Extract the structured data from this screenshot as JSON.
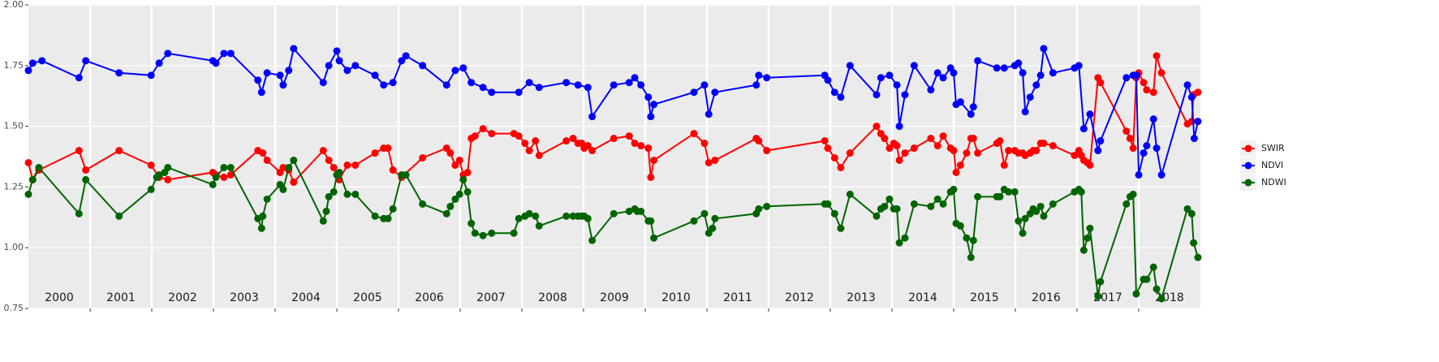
{
  "chart_data": {
    "type": "line",
    "ylim": [
      0.75,
      2.0
    ],
    "yticks": [
      {
        "value": 0.75,
        "label": "0.75"
      },
      {
        "value": 1.0,
        "label": "1.00"
      },
      {
        "value": 1.25,
        "label": "1.25"
      },
      {
        "value": 1.5,
        "label": "1.50"
      },
      {
        "value": 1.75,
        "label": "1.75"
      },
      {
        "value": 2.0,
        "label": "2.00"
      }
    ],
    "xlim": [
      2000,
      2019
    ],
    "xbreaks": [
      2001,
      2002,
      2003,
      2004,
      2005,
      2006,
      2007,
      2008,
      2009,
      2010,
      2011,
      2012,
      2013,
      2014,
      2015,
      2016,
      2017,
      2018
    ],
    "year_labels": [
      "2000",
      "2001",
      "2002",
      "2003",
      "2004",
      "2005",
      "2006",
      "2007",
      "2008",
      "2009",
      "2010",
      "2011",
      "2012",
      "2013",
      "2014",
      "2015",
      "2016",
      "2017",
      "2018"
    ],
    "grid": true,
    "legend": "right",
    "series": [
      {
        "name": "SWIR",
        "color": "#ff0000",
        "x": [
          2000.0,
          2000.07,
          2000.17,
          2000.82,
          2000.93,
          2001.47,
          2001.99,
          2002.12,
          2002.26,
          2002.99,
          2003.04,
          2003.17,
          2003.28,
          2003.72,
          2003.8,
          2003.87,
          2004.08,
          2004.13,
          2004.22,
          2004.3,
          2004.78,
          2004.87,
          2004.95,
          2005.0,
          2005.04,
          2005.17,
          2005.3,
          2005.62,
          2005.76,
          2005.83,
          2005.91,
          2006.05,
          2006.39,
          2006.78,
          2006.84,
          2006.92,
          2006.99,
          2007.05,
          2007.12,
          2007.18,
          2007.24,
          2007.37,
          2007.51,
          2007.87,
          2007.95,
          2008.05,
          2008.12,
          2008.22,
          2008.28,
          2008.72,
          2008.83,
          2008.91,
          2008.97,
          2009.01,
          2009.07,
          2009.14,
          2009.49,
          2009.74,
          2009.83,
          2009.93,
          2010.05,
          2010.09,
          2010.14,
          2010.79,
          2010.96,
          2011.03,
          2011.13,
          2011.8,
          2011.84,
          2011.97,
          2012.91,
          2012.96,
          2013.07,
          2013.17,
          2013.32,
          2013.75,
          2013.82,
          2013.88,
          2013.96,
          2014.03,
          2014.08,
          2014.12,
          2014.21,
          2014.36,
          2014.63,
          2014.74,
          2014.83,
          2014.95,
          2015.0,
          2015.04,
          2015.11,
          2015.21,
          2015.28,
          2015.32,
          2015.39,
          2015.7,
          2015.75,
          2015.82,
          2015.89,
          2015.99,
          2016.05,
          2016.12,
          2016.16,
          2016.24,
          2016.29,
          2016.34,
          2016.41,
          2016.46,
          2016.61,
          2016.96,
          2017.03,
          2017.07,
          2017.11,
          2017.17,
          2017.21,
          2017.34,
          2017.38,
          2017.8,
          2017.86,
          2017.91,
          2017.96,
          2018.0,
          2018.08,
          2018.13,
          2018.24,
          2018.29,
          2018.37,
          2018.79,
          2018.86,
          2018.89,
          2018.96
        ],
        "values": [
          1.35,
          1.28,
          1.32,
          1.4,
          1.32,
          1.4,
          1.34,
          1.29,
          1.28,
          1.31,
          1.3,
          1.29,
          1.3,
          1.4,
          1.39,
          1.36,
          1.31,
          1.33,
          1.32,
          1.27,
          1.4,
          1.36,
          1.33,
          1.3,
          1.28,
          1.34,
          1.34,
          1.39,
          1.41,
          1.41,
          1.32,
          1.29,
          1.37,
          1.41,
          1.39,
          1.34,
          1.36,
          1.3,
          1.31,
          1.45,
          1.46,
          1.49,
          1.47,
          1.47,
          1.46,
          1.43,
          1.4,
          1.44,
          1.38,
          1.44,
          1.45,
          1.43,
          1.43,
          1.41,
          1.42,
          1.4,
          1.45,
          1.46,
          1.43,
          1.42,
          1.41,
          1.29,
          1.36,
          1.47,
          1.43,
          1.35,
          1.36,
          1.45,
          1.44,
          1.4,
          1.44,
          1.41,
          1.37,
          1.33,
          1.39,
          1.5,
          1.47,
          1.45,
          1.41,
          1.43,
          1.42,
          1.36,
          1.39,
          1.41,
          1.45,
          1.42,
          1.46,
          1.41,
          1.4,
          1.31,
          1.34,
          1.39,
          1.45,
          1.45,
          1.39,
          1.43,
          1.44,
          1.34,
          1.4,
          1.4,
          1.39,
          1.39,
          1.38,
          1.39,
          1.4,
          1.4,
          1.43,
          1.43,
          1.42,
          1.38,
          1.4,
          1.38,
          1.36,
          1.35,
          1.34,
          1.7,
          1.68,
          1.48,
          1.45,
          1.41,
          1.7,
          1.72,
          1.68,
          1.65,
          1.64,
          1.79,
          1.72,
          1.51,
          1.52,
          1.63,
          1.64
        ]
      },
      {
        "name": "NDVI",
        "color": "#0000ff",
        "x": [
          2000.0,
          2000.07,
          2000.22,
          2000.82,
          2000.93,
          2001.47,
          2001.99,
          2002.12,
          2002.26,
          2002.99,
          2003.04,
          2003.17,
          2003.28,
          2003.72,
          2003.78,
          2003.87,
          2004.08,
          2004.13,
          2004.22,
          2004.3,
          2004.78,
          2004.87,
          2005.0,
          2005.04,
          2005.17,
          2005.3,
          2005.62,
          2005.76,
          2005.91,
          2006.05,
          2006.12,
          2006.39,
          2006.78,
          2006.92,
          2007.05,
          2007.18,
          2007.37,
          2007.51,
          2007.95,
          2008.12,
          2008.28,
          2008.72,
          2008.91,
          2009.07,
          2009.14,
          2009.49,
          2009.74,
          2009.83,
          2009.93,
          2010.05,
          2010.09,
          2010.14,
          2010.79,
          2010.96,
          2011.03,
          2011.13,
          2011.8,
          2011.84,
          2011.97,
          2012.91,
          2012.96,
          2013.07,
          2013.17,
          2013.32,
          2013.75,
          2013.82,
          2013.96,
          2014.08,
          2014.12,
          2014.21,
          2014.36,
          2014.63,
          2014.74,
          2014.83,
          2014.95,
          2015.0,
          2015.04,
          2015.11,
          2015.28,
          2015.32,
          2015.39,
          2015.7,
          2015.82,
          2015.99,
          2016.05,
          2016.12,
          2016.16,
          2016.24,
          2016.34,
          2016.41,
          2016.46,
          2016.61,
          2016.96,
          2017.03,
          2017.11,
          2017.21,
          2017.34,
          2017.38,
          2017.8,
          2017.91,
          2017.96,
          2018.0,
          2018.08,
          2018.13,
          2018.24,
          2018.29,
          2018.37,
          2018.79,
          2018.86,
          2018.9,
          2018.96
        ],
        "values": [
          1.73,
          1.76,
          1.77,
          1.7,
          1.77,
          1.72,
          1.71,
          1.76,
          1.8,
          1.77,
          1.76,
          1.8,
          1.8,
          1.69,
          1.64,
          1.72,
          1.71,
          1.67,
          1.73,
          1.82,
          1.68,
          1.75,
          1.81,
          1.77,
          1.73,
          1.75,
          1.71,
          1.67,
          1.68,
          1.77,
          1.79,
          1.75,
          1.67,
          1.73,
          1.74,
          1.68,
          1.66,
          1.64,
          1.64,
          1.68,
          1.66,
          1.68,
          1.67,
          1.66,
          1.54,
          1.67,
          1.68,
          1.7,
          1.67,
          1.62,
          1.54,
          1.59,
          1.64,
          1.67,
          1.55,
          1.64,
          1.67,
          1.71,
          1.7,
          1.71,
          1.69,
          1.64,
          1.62,
          1.75,
          1.63,
          1.7,
          1.71,
          1.67,
          1.5,
          1.63,
          1.75,
          1.65,
          1.72,
          1.7,
          1.74,
          1.72,
          1.59,
          1.6,
          1.55,
          1.58,
          1.77,
          1.74,
          1.74,
          1.75,
          1.76,
          1.72,
          1.56,
          1.62,
          1.67,
          1.71,
          1.82,
          1.72,
          1.74,
          1.75,
          1.49,
          1.55,
          1.4,
          1.44,
          1.7,
          1.71,
          1.71,
          1.3,
          1.39,
          1.42,
          1.53,
          1.41,
          1.3,
          1.67,
          1.62,
          1.45,
          1.52
        ]
      },
      {
        "name": "NDWI",
        "color": "#006400",
        "x": [
          2000.0,
          2000.07,
          2000.17,
          2000.82,
          2000.93,
          2001.47,
          2001.99,
          2002.08,
          2002.12,
          2002.21,
          2002.26,
          2002.99,
          2003.04,
          2003.17,
          2003.28,
          2003.72,
          2003.78,
          2003.8,
          2003.87,
          2004.08,
          2004.13,
          2004.22,
          2004.3,
          2004.78,
          2004.83,
          2004.87,
          2004.95,
          2005.0,
          2005.04,
          2005.17,
          2005.3,
          2005.62,
          2005.76,
          2005.83,
          2005.91,
          2006.05,
          2006.12,
          2006.39,
          2006.78,
          2006.84,
          2006.92,
          2006.99,
          2007.05,
          2007.12,
          2007.18,
          2007.24,
          2007.37,
          2007.51,
          2007.87,
          2007.95,
          2008.05,
          2008.12,
          2008.22,
          2008.28,
          2008.72,
          2008.83,
          2008.91,
          2008.97,
          2009.01,
          2009.07,
          2009.14,
          2009.49,
          2009.74,
          2009.83,
          2009.87,
          2009.93,
          2010.05,
          2010.09,
          2010.14,
          2010.79,
          2010.96,
          2011.03,
          2011.09,
          2011.13,
          2011.8,
          2011.84,
          2011.97,
          2012.91,
          2012.96,
          2013.07,
          2013.17,
          2013.32,
          2013.75,
          2013.82,
          2013.88,
          2013.96,
          2014.03,
          2014.08,
          2014.12,
          2014.21,
          2014.36,
          2014.63,
          2014.74,
          2014.83,
          2014.95,
          2015.0,
          2015.04,
          2015.11,
          2015.21,
          2015.28,
          2015.32,
          2015.39,
          2015.7,
          2015.75,
          2015.82,
          2015.89,
          2015.99,
          2016.05,
          2016.12,
          2016.16,
          2016.24,
          2016.29,
          2016.34,
          2016.41,
          2016.46,
          2016.61,
          2016.96,
          2017.03,
          2017.07,
          2017.11,
          2017.17,
          2017.21,
          2017.34,
          2017.38,
          2017.8,
          2017.86,
          2017.91,
          2017.96,
          2018.08,
          2018.13,
          2018.24,
          2018.29,
          2018.37,
          2018.79,
          2018.86,
          2018.89,
          2018.96
        ],
        "values": [
          1.22,
          1.28,
          1.33,
          1.14,
          1.28,
          1.13,
          1.24,
          1.29,
          1.3,
          1.31,
          1.33,
          1.26,
          1.29,
          1.33,
          1.33,
          1.12,
          1.08,
          1.13,
          1.2,
          1.26,
          1.24,
          1.33,
          1.36,
          1.11,
          1.15,
          1.21,
          1.23,
          1.3,
          1.31,
          1.22,
          1.22,
          1.13,
          1.12,
          1.12,
          1.16,
          1.3,
          1.3,
          1.18,
          1.14,
          1.17,
          1.2,
          1.22,
          1.28,
          1.23,
          1.1,
          1.06,
          1.05,
          1.06,
          1.06,
          1.12,
          1.13,
          1.14,
          1.13,
          1.09,
          1.13,
          1.13,
          1.13,
          1.13,
          1.13,
          1.12,
          1.03,
          1.14,
          1.15,
          1.16,
          1.15,
          1.15,
          1.11,
          1.11,
          1.04,
          1.11,
          1.14,
          1.06,
          1.08,
          1.12,
          1.14,
          1.16,
          1.17,
          1.18,
          1.18,
          1.14,
          1.08,
          1.22,
          1.13,
          1.16,
          1.17,
          1.2,
          1.16,
          1.16,
          1.02,
          1.04,
          1.18,
          1.17,
          1.2,
          1.18,
          1.23,
          1.24,
          1.1,
          1.09,
          1.04,
          0.96,
          1.03,
          1.21,
          1.21,
          1.21,
          1.24,
          1.23,
          1.23,
          1.11,
          1.06,
          1.12,
          1.14,
          1.16,
          1.15,
          1.17,
          1.13,
          1.18,
          1.23,
          1.24,
          1.23,
          0.99,
          1.04,
          1.08,
          0.8,
          0.86,
          1.18,
          1.21,
          1.22,
          0.81,
          0.87,
          0.87,
          0.92,
          0.83,
          0.79,
          1.16,
          1.14,
          1.02,
          0.96
        ]
      }
    ]
  }
}
